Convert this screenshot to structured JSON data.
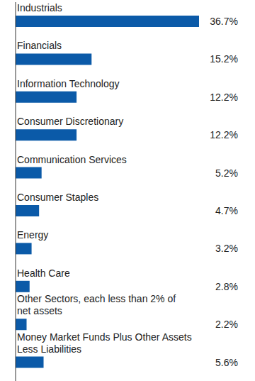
{
  "chart_data": {
    "type": "bar",
    "orientation": "horizontal",
    "categories": [
      "Industrials",
      "Financials",
      "Information Technology",
      "Consumer Discretionary",
      "Communication Services",
      "Consumer Staples",
      "Energy",
      "Health Care",
      "Other Sectors, each less than 2% of net assets",
      "Money Market Funds Plus Other Assets Less Liabilities"
    ],
    "values": [
      36.7,
      15.2,
      12.2,
      12.2,
      5.2,
      4.7,
      3.2,
      2.8,
      2.2,
      5.6
    ],
    "value_labels": [
      "36.7%",
      "15.2%",
      "12.2%",
      "12.2%",
      "5.2%",
      "4.7%",
      "3.2%",
      "2.8%",
      "2.2%",
      "5.6%"
    ],
    "data_labels": true,
    "color": "#0b5aa8"
  }
}
